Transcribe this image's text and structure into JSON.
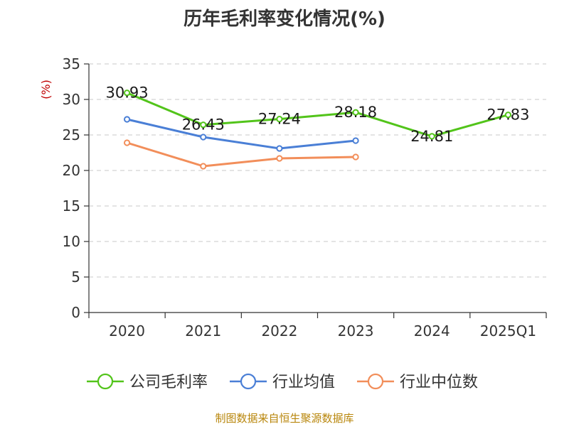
{
  "chart_data": {
    "type": "line",
    "title": "历年毛利率变化情况(%)",
    "ylabel": "(%)",
    "categories": [
      "2020",
      "2021",
      "2022",
      "2023",
      "2024",
      "2025Q1"
    ],
    "ylim": [
      0,
      35
    ],
    "yticks": [
      "0",
      "5",
      "10",
      "15",
      "20",
      "25",
      "30",
      "35"
    ],
    "grid": true,
    "legend_position": "bottom",
    "series": [
      {
        "name": "公司毛利率",
        "color": "#52c41a",
        "values": [
          30.93,
          26.43,
          27.24,
          28.18,
          24.81,
          27.83
        ],
        "labels": [
          "30.93",
          "26.43",
          "27.24",
          "28.18",
          "24.81",
          "27.83"
        ]
      },
      {
        "name": "行业均值",
        "color": "#4a7fd6",
        "values": [
          27.2,
          24.7,
          23.1,
          24.2,
          null,
          null
        ],
        "labels": []
      },
      {
        "name": "行业中位数",
        "color": "#f28e5a",
        "values": [
          23.9,
          20.6,
          21.7,
          21.9,
          null,
          null
        ],
        "labels": []
      }
    ],
    "source": "制图数据来自恒生聚源数据库"
  }
}
